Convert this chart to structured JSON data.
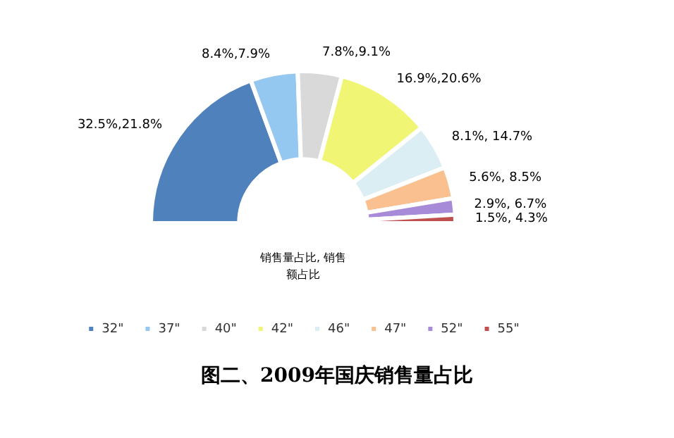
{
  "chart_data": {
    "type": "donut",
    "title": "图二、2009年国庆销售量占比",
    "categories": [
      "32\"",
      "37\"",
      "40\"",
      "42\"",
      "46\"",
      "47\"",
      "52\"",
      "55\""
    ],
    "series": [
      {
        "name": "销售量占比, 销售额占比",
        "values": [
          32.5,
          8.4,
          7.8,
          16.9,
          8.1,
          5.6,
          2.9,
          1.5
        ],
        "value_labels": [
          "32.5%,21.8%",
          "8.4%,7.9%",
          "7.8%,9.1%",
          "16.9%,20.6%",
          "8.1%, 14.7%",
          "5.6%, 8.5%",
          "2.9%, 6.7%",
          "1.5%, 4.3%"
        ],
        "colors": [
          "#4f81bd",
          "#95c8f0",
          "#d9d9d9",
          "#f0f574",
          "#dbeef4",
          "#fac090",
          "#a78bd8",
          "#c0504d"
        ]
      }
    ],
    "legend": "bottom"
  }
}
